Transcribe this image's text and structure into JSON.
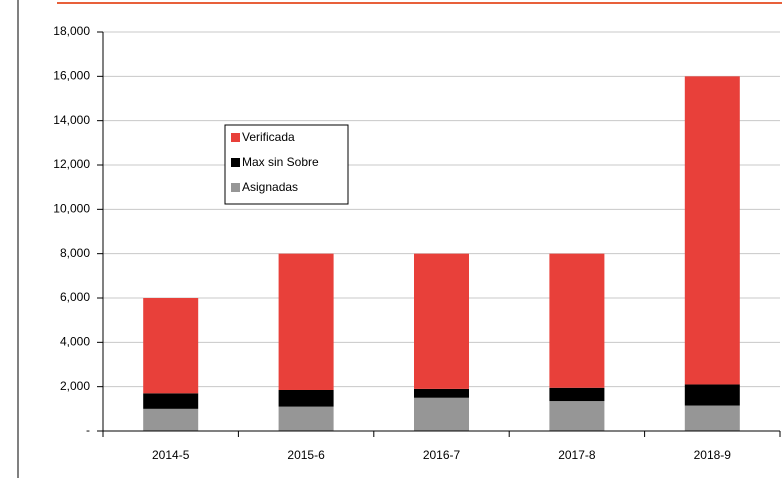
{
  "chart_data": {
    "type": "bar",
    "stacked": true,
    "categories": [
      "2014-5",
      "2015-6",
      "2016-7",
      "2017-8",
      "2018-9"
    ],
    "series": [
      {
        "name": "Asignadas",
        "color": "#969696",
        "values": [
          1000,
          1100,
          1500,
          1350,
          1150
        ]
      },
      {
        "name": "Max sin Sobre",
        "color": "#000000",
        "values": [
          700,
          750,
          400,
          600,
          950
        ]
      },
      {
        "name": "Verificada",
        "color": "#e8403a",
        "values": [
          4300,
          6150,
          6100,
          6050,
          13900
        ]
      }
    ],
    "ylim": [
      0,
      18000
    ],
    "yticks": [
      {
        "value": 0,
        "label": "-"
      },
      {
        "value": 2000,
        "label": "2,000"
      },
      {
        "value": 4000,
        "label": "4,000"
      },
      {
        "value": 6000,
        "label": "6,000"
      },
      {
        "value": 8000,
        "label": "8,000"
      },
      {
        "value": 10000,
        "label": "10,000"
      },
      {
        "value": 12000,
        "label": "12,000"
      },
      {
        "value": 14000,
        "label": "14,000"
      },
      {
        "value": 16000,
        "label": "16,000"
      },
      {
        "value": 18000,
        "label": "18,000"
      }
    ],
    "grid": true,
    "legend": "upper left"
  }
}
